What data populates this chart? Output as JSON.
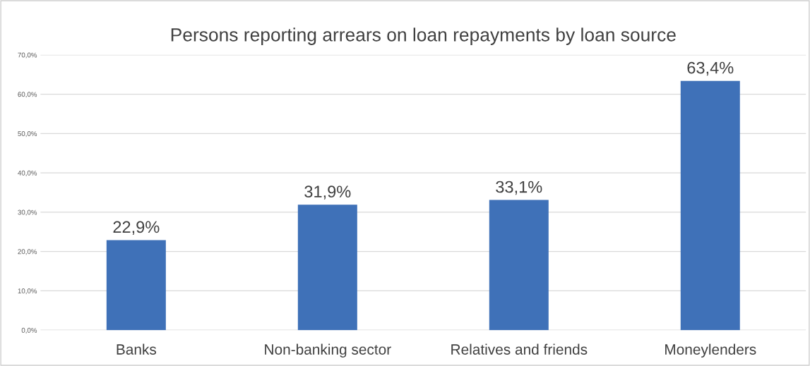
{
  "chart_data": {
    "type": "bar",
    "title": "Persons reporting arrears on loan repayments by loan source",
    "categories": [
      "Banks",
      "Non-banking sector",
      "Relatives and friends",
      "Moneylenders"
    ],
    "values": [
      22.9,
      31.9,
      33.1,
      63.4
    ],
    "value_labels": [
      "22,9%",
      "31,9%",
      "33,1%",
      "63,4%"
    ],
    "color": "#3f71b8",
    "ylim": [
      0,
      70
    ],
    "yticks": [
      {
        "value": 0,
        "label": "0,0%"
      },
      {
        "value": 10,
        "label": "10,0%"
      },
      {
        "value": 20,
        "label": "20,0%"
      },
      {
        "value": 30,
        "label": "30,0%"
      },
      {
        "value": 40,
        "label": "40,0%"
      },
      {
        "value": 50,
        "label": "50,0%"
      },
      {
        "value": 60,
        "label": "60,0%"
      },
      {
        "value": 70,
        "label": "70,0%"
      }
    ],
    "grid": "y",
    "legend": false
  }
}
